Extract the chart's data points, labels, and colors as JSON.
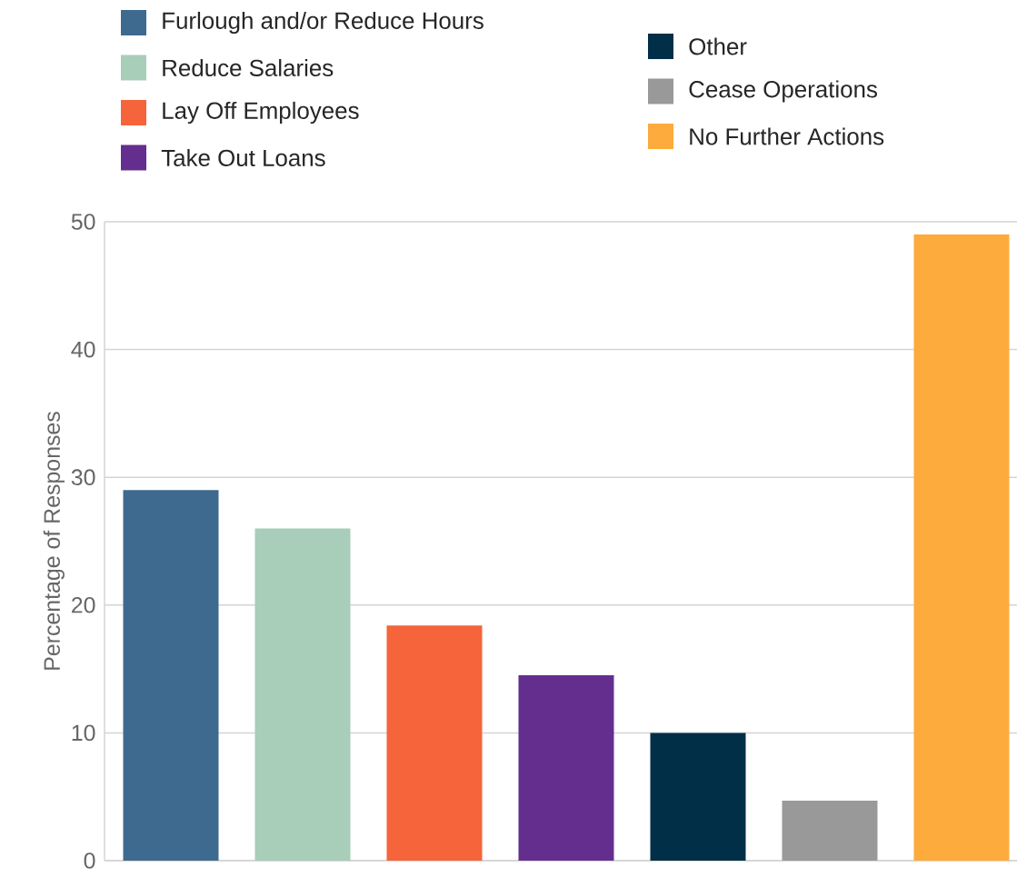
{
  "chart_data": {
    "type": "bar",
    "ylabel": "Percentage of Responses",
    "categories": [
      null,
      null,
      null,
      null,
      null,
      null,
      null
    ],
    "series": [
      {
        "name": "Furlough and/or Reduce Hours",
        "color": "#3e6a8f",
        "values": [
          29,
          null,
          null,
          null,
          null,
          null,
          null
        ]
      },
      {
        "name": "Reduce Salaries",
        "color": "#a8cdb8",
        "values": [
          null,
          26,
          null,
          null,
          null,
          null,
          null
        ]
      },
      {
        "name": "Lay Off Employees",
        "color": "#f5643a",
        "values": [
          null,
          null,
          18.4,
          null,
          null,
          null,
          null
        ]
      },
      {
        "name": "Take Out Loans",
        "color": "#642e8e",
        "values": [
          null,
          null,
          null,
          14.5,
          null,
          null,
          null
        ]
      },
      {
        "name": "Other",
        "color": "#012f48",
        "values": [
          null,
          null,
          null,
          null,
          10,
          null,
          null
        ]
      },
      {
        "name": "Cease Operations",
        "color": "#999999",
        "values": [
          null,
          null,
          null,
          null,
          null,
          4.7,
          null
        ]
      },
      {
        "name": "No Further Actions",
        "color": "#fdab3c",
        "values": [
          null,
          null,
          null,
          null,
          null,
          null,
          49
        ]
      }
    ],
    "ylim": [
      0,
      50
    ],
    "yticks": [
      0,
      10,
      20,
      30,
      40,
      50
    ],
    "grid": "y",
    "legend": "top"
  }
}
